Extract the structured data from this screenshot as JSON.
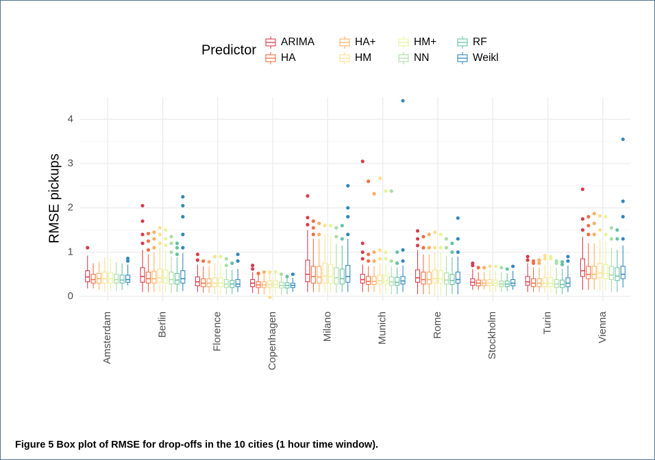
{
  "chart_data": {
    "type": "box",
    "caption": "Figure 5 Box plot of RMSE for drop-offs in the 10 cities (1 hour time window).",
    "ylabel": "RMSE pickups",
    "legend_title": "Predictor",
    "categories": [
      "Amsterdam",
      "Berlin",
      "Florence",
      "Copenhagen",
      "Milano",
      "Munich",
      "Rome",
      "Stockholm",
      "Turin",
      "Vienna"
    ],
    "ylim": [
      -0.1,
      4.5
    ],
    "yticks": [
      0,
      1,
      2,
      3,
      4
    ],
    "yminor": [
      0.5,
      1.5,
      2.5,
      3.5
    ],
    "grid": true,
    "series": [
      {
        "name": "ARIMA",
        "color": "#d53e4f",
        "values": [
          {
            "min": 0.18,
            "q1": 0.33,
            "median": 0.44,
            "q3": 0.58,
            "max": 0.92,
            "outliers": [
              1.1
            ]
          },
          {
            "min": 0.1,
            "q1": 0.32,
            "median": 0.45,
            "q3": 0.65,
            "max": 1.05,
            "outliers": [
              1.2,
              1.4,
              1.7,
              2.05
            ]
          },
          {
            "min": 0.1,
            "q1": 0.24,
            "median": 0.33,
            "q3": 0.44,
            "max": 0.72,
            "outliers": [
              0.82,
              0.95
            ]
          },
          {
            "min": 0.08,
            "q1": 0.22,
            "median": 0.3,
            "q3": 0.38,
            "max": 0.55,
            "outliers": [
              0.62,
              0.7
            ]
          },
          {
            "min": 0.1,
            "q1": 0.33,
            "median": 0.5,
            "q3": 0.82,
            "max": 1.5,
            "outliers": [
              1.62,
              1.78,
              2.27
            ]
          },
          {
            "min": 0.1,
            "q1": 0.3,
            "median": 0.38,
            "q3": 0.5,
            "max": 0.72,
            "outliers": [
              0.85,
              1.0,
              1.2,
              3.05
            ]
          },
          {
            "min": 0.05,
            "q1": 0.32,
            "median": 0.42,
            "q3": 0.6,
            "max": 1.05,
            "outliers": [
              1.15,
              1.3,
              1.48
            ]
          },
          {
            "min": 0.15,
            "q1": 0.25,
            "median": 0.32,
            "q3": 0.4,
            "max": 0.62,
            "outliers": [
              0.7,
              0.75
            ]
          },
          {
            "min": 0.1,
            "q1": 0.25,
            "median": 0.33,
            "q3": 0.45,
            "max": 0.75,
            "outliers": [
              0.82,
              0.9
            ]
          },
          {
            "min": 0.15,
            "q1": 0.45,
            "median": 0.58,
            "q3": 0.85,
            "max": 1.35,
            "outliers": [
              1.5,
              1.75,
              2.42
            ]
          }
        ]
      },
      {
        "name": "HA",
        "color": "#f46d43",
        "values": [
          {
            "min": 0.18,
            "q1": 0.3,
            "median": 0.38,
            "q3": 0.5,
            "max": 0.75,
            "outliers": []
          },
          {
            "min": 0.1,
            "q1": 0.3,
            "median": 0.4,
            "q3": 0.55,
            "max": 0.95,
            "outliers": [
              1.05,
              1.25,
              1.42
            ]
          },
          {
            "min": 0.08,
            "q1": 0.22,
            "median": 0.3,
            "q3": 0.4,
            "max": 0.68,
            "outliers": [
              0.8
            ]
          },
          {
            "min": 0.05,
            "q1": 0.2,
            "median": 0.26,
            "q3": 0.33,
            "max": 0.48,
            "outliers": [
              0.52
            ]
          },
          {
            "min": 0.1,
            "q1": 0.3,
            "median": 0.45,
            "q3": 0.68,
            "max": 1.3,
            "outliers": [
              1.4,
              1.55,
              1.7
            ]
          },
          {
            "min": 0.1,
            "q1": 0.27,
            "median": 0.34,
            "q3": 0.45,
            "max": 0.68,
            "outliers": [
              0.8,
              0.95,
              2.6
            ]
          },
          {
            "min": 0.05,
            "q1": 0.28,
            "median": 0.38,
            "q3": 0.55,
            "max": 0.95,
            "outliers": [
              1.1,
              1.35
            ]
          },
          {
            "min": 0.15,
            "q1": 0.24,
            "median": 0.3,
            "q3": 0.37,
            "max": 0.55,
            "outliers": [
              0.65
            ]
          },
          {
            "min": 0.1,
            "q1": 0.22,
            "median": 0.3,
            "q3": 0.4,
            "max": 0.65,
            "outliers": [
              0.75,
              0.8
            ]
          },
          {
            "min": 0.15,
            "q1": 0.4,
            "median": 0.5,
            "q3": 0.68,
            "max": 1.2,
            "outliers": [
              1.4,
              1.6,
              1.8
            ]
          }
        ]
      },
      {
        "name": "HA+",
        "color": "#fdae61",
        "values": [
          {
            "min": 0.15,
            "q1": 0.3,
            "median": 0.4,
            "q3": 0.52,
            "max": 0.78,
            "outliers": []
          },
          {
            "min": 0.1,
            "q1": 0.3,
            "median": 0.4,
            "q3": 0.57,
            "max": 1.0,
            "outliers": [
              1.1,
              1.3,
              1.45
            ]
          },
          {
            "min": 0.08,
            "q1": 0.22,
            "median": 0.3,
            "q3": 0.4,
            "max": 0.68,
            "outliers": [
              0.78
            ]
          },
          {
            "min": 0.05,
            "q1": 0.2,
            "median": 0.26,
            "q3": 0.33,
            "max": 0.5,
            "outliers": [
              0.55
            ]
          },
          {
            "min": 0.1,
            "q1": 0.3,
            "median": 0.44,
            "q3": 0.68,
            "max": 1.3,
            "outliers": [
              1.4,
              1.65
            ]
          },
          {
            "min": 0.1,
            "q1": 0.27,
            "median": 0.34,
            "q3": 0.45,
            "max": 0.68,
            "outliers": [
              0.8,
              1.0,
              2.32
            ]
          },
          {
            "min": 0.05,
            "q1": 0.28,
            "median": 0.38,
            "q3": 0.55,
            "max": 0.95,
            "outliers": [
              1.1,
              1.4
            ]
          },
          {
            "min": 0.15,
            "q1": 0.24,
            "median": 0.3,
            "q3": 0.37,
            "max": 0.55,
            "outliers": [
              0.65
            ]
          },
          {
            "min": 0.1,
            "q1": 0.22,
            "median": 0.3,
            "q3": 0.4,
            "max": 0.65,
            "outliers": [
              0.75,
              0.82
            ]
          },
          {
            "min": 0.15,
            "q1": 0.4,
            "median": 0.5,
            "q3": 0.68,
            "max": 1.2,
            "outliers": [
              1.4,
              1.65,
              1.87
            ]
          }
        ]
      },
      {
        "name": "HM",
        "color": "#fee08b",
        "values": [
          {
            "min": 0.1,
            "q1": 0.3,
            "median": 0.4,
            "q3": 0.55,
            "max": 0.88,
            "outliers": []
          },
          {
            "min": 0.1,
            "q1": 0.32,
            "median": 0.42,
            "q3": 0.62,
            "max": 1.1,
            "outliers": [
              1.2,
              1.4,
              1.55
            ]
          },
          {
            "min": 0.05,
            "q1": 0.22,
            "median": 0.3,
            "q3": 0.42,
            "max": 0.75,
            "outliers": [
              0.9
            ]
          },
          {
            "min": 0.05,
            "q1": 0.2,
            "median": 0.27,
            "q3": 0.35,
            "max": 0.52,
            "outliers": [
              -0.02,
              0.55
            ]
          },
          {
            "min": 0.1,
            "q1": 0.3,
            "median": 0.46,
            "q3": 0.75,
            "max": 1.4,
            "outliers": [
              1.6
            ]
          },
          {
            "min": 0.05,
            "q1": 0.28,
            "median": 0.36,
            "q3": 0.48,
            "max": 0.75,
            "outliers": [
              0.85,
              1.05,
              2.67
            ]
          },
          {
            "min": 0.02,
            "q1": 0.3,
            "median": 0.4,
            "q3": 0.6,
            "max": 1.0,
            "outliers": [
              1.1,
              1.45
            ]
          },
          {
            "min": 0.1,
            "q1": 0.24,
            "median": 0.3,
            "q3": 0.38,
            "max": 0.6,
            "outliers": [
              0.68
            ]
          },
          {
            "min": 0.08,
            "q1": 0.22,
            "median": 0.3,
            "q3": 0.42,
            "max": 0.72,
            "outliers": [
              0.85,
              0.92
            ]
          },
          {
            "min": 0.12,
            "q1": 0.42,
            "median": 0.53,
            "q3": 0.75,
            "max": 1.3,
            "outliers": [
              1.5,
              1.82
            ]
          }
        ]
      },
      {
        "name": "HM+",
        "color": "#e6f598",
        "values": [
          {
            "min": 0.12,
            "q1": 0.3,
            "median": 0.4,
            "q3": 0.54,
            "max": 0.85,
            "outliers": []
          },
          {
            "min": 0.1,
            "q1": 0.3,
            "median": 0.42,
            "q3": 0.6,
            "max": 1.05,
            "outliers": [
              1.15,
              1.3,
              1.5
            ]
          },
          {
            "min": 0.05,
            "q1": 0.22,
            "median": 0.3,
            "q3": 0.42,
            "max": 0.72,
            "outliers": [
              0.9
            ]
          },
          {
            "min": 0.02,
            "q1": 0.2,
            "median": 0.27,
            "q3": 0.35,
            "max": 0.5,
            "outliers": [
              0.55
            ]
          },
          {
            "min": 0.1,
            "q1": 0.3,
            "median": 0.45,
            "q3": 0.72,
            "max": 1.35,
            "outliers": [
              1.6
            ]
          },
          {
            "min": 0.05,
            "q1": 0.28,
            "median": 0.35,
            "q3": 0.47,
            "max": 0.72,
            "outliers": [
              0.85,
              1.0,
              2.38
            ]
          },
          {
            "min": 0.02,
            "q1": 0.3,
            "median": 0.4,
            "q3": 0.58,
            "max": 1.0,
            "outliers": [
              1.1,
              1.4
            ]
          },
          {
            "min": 0.1,
            "q1": 0.24,
            "median": 0.3,
            "q3": 0.37,
            "max": 0.58,
            "outliers": [
              0.68
            ]
          },
          {
            "min": 0.08,
            "q1": 0.22,
            "median": 0.3,
            "q3": 0.42,
            "max": 0.7,
            "outliers": [
              0.85,
              0.9
            ]
          },
          {
            "min": 0.12,
            "q1": 0.4,
            "median": 0.52,
            "q3": 0.72,
            "max": 1.25,
            "outliers": [
              1.4,
              1.8
            ]
          }
        ]
      },
      {
        "name": "NN",
        "color": "#abdda4",
        "values": [
          {
            "min": 0.12,
            "q1": 0.3,
            "median": 0.38,
            "q3": 0.5,
            "max": 0.78,
            "outliers": []
          },
          {
            "min": 0.08,
            "q1": 0.28,
            "median": 0.38,
            "q3": 0.55,
            "max": 0.9,
            "outliers": [
              1.0,
              1.2,
              1.35
            ]
          },
          {
            "min": 0.05,
            "q1": 0.2,
            "median": 0.28,
            "q3": 0.38,
            "max": 0.62,
            "outliers": [
              0.7,
              0.85
            ]
          },
          {
            "min": 0.03,
            "q1": 0.19,
            "median": 0.25,
            "q3": 0.32,
            "max": 0.45,
            "outliers": [
              0.5
            ]
          },
          {
            "min": 0.08,
            "q1": 0.28,
            "median": 0.42,
            "q3": 0.65,
            "max": 1.2,
            "outliers": [
              1.35,
              1.55
            ]
          },
          {
            "min": 0.05,
            "q1": 0.25,
            "median": 0.33,
            "q3": 0.44,
            "max": 0.68,
            "outliers": [
              0.8,
              2.38
            ]
          },
          {
            "min": 0.02,
            "q1": 0.28,
            "median": 0.37,
            "q3": 0.53,
            "max": 0.92,
            "outliers": [
              1.1,
              1.3
            ]
          },
          {
            "min": 0.1,
            "q1": 0.22,
            "median": 0.28,
            "q3": 0.35,
            "max": 0.55,
            "outliers": [
              0.65
            ]
          },
          {
            "min": 0.05,
            "q1": 0.2,
            "median": 0.28,
            "q3": 0.38,
            "max": 0.65,
            "outliers": [
              0.75,
              0.8
            ]
          },
          {
            "min": 0.1,
            "q1": 0.38,
            "median": 0.48,
            "q3": 0.68,
            "max": 1.1,
            "outliers": [
              1.3,
              1.55
            ]
          }
        ]
      },
      {
        "name": "RF",
        "color": "#66c2a5",
        "values": [
          {
            "min": 0.15,
            "q1": 0.3,
            "median": 0.37,
            "q3": 0.48,
            "max": 0.75,
            "outliers": []
          },
          {
            "min": 0.1,
            "q1": 0.28,
            "median": 0.37,
            "q3": 0.52,
            "max": 0.88,
            "outliers": [
              0.95,
              1.1,
              1.2
            ]
          },
          {
            "min": 0.05,
            "q1": 0.2,
            "median": 0.28,
            "q3": 0.36,
            "max": 0.6,
            "outliers": [
              0.75
            ]
          },
          {
            "min": 0.05,
            "q1": 0.19,
            "median": 0.25,
            "q3": 0.31,
            "max": 0.42,
            "outliers": [
              0.45
            ]
          },
          {
            "min": 0.1,
            "q1": 0.28,
            "median": 0.4,
            "q3": 0.62,
            "max": 1.15,
            "outliers": [
              1.3,
              1.6
            ]
          },
          {
            "min": 0.05,
            "q1": 0.25,
            "median": 0.32,
            "q3": 0.43,
            "max": 0.65,
            "outliers": [
              0.75,
              1.0
            ]
          },
          {
            "min": 0.05,
            "q1": 0.27,
            "median": 0.36,
            "q3": 0.5,
            "max": 0.88,
            "outliers": [
              1.0,
              1.2
            ]
          },
          {
            "min": 0.12,
            "q1": 0.22,
            "median": 0.28,
            "q3": 0.35,
            "max": 0.52,
            "outliers": [
              0.62
            ]
          },
          {
            "min": 0.05,
            "q1": 0.2,
            "median": 0.27,
            "q3": 0.37,
            "max": 0.62,
            "outliers": [
              0.72,
              0.78
            ]
          },
          {
            "min": 0.1,
            "q1": 0.36,
            "median": 0.46,
            "q3": 0.65,
            "max": 1.05,
            "outliers": [
              1.3,
              1.5
            ]
          }
        ]
      },
      {
        "name": "Weikl",
        "color": "#3288bd",
        "values": [
          {
            "min": 0.25,
            "q1": 0.32,
            "median": 0.38,
            "q3": 0.48,
            "max": 0.72,
            "outliers": [
              0.8,
              0.86
            ]
          },
          {
            "min": 0.12,
            "q1": 0.3,
            "median": 0.4,
            "q3": 0.58,
            "max": 0.98,
            "outliers": [
              1.1,
              1.4,
              1.8,
              2.05,
              2.25
            ]
          },
          {
            "min": 0.1,
            "q1": 0.22,
            "median": 0.28,
            "q3": 0.38,
            "max": 0.62,
            "outliers": [
              0.8,
              0.95
            ]
          },
          {
            "min": 0.1,
            "q1": 0.2,
            "median": 0.25,
            "q3": 0.3,
            "max": 0.42,
            "outliers": [
              0.5
            ]
          },
          {
            "min": 0.1,
            "q1": 0.32,
            "median": 0.45,
            "q3": 0.7,
            "max": 1.3,
            "outliers": [
              1.4,
              1.8,
              2.0,
              2.5
            ]
          },
          {
            "min": 0.1,
            "q1": 0.28,
            "median": 0.35,
            "q3": 0.45,
            "max": 0.7,
            "outliers": [
              0.8,
              1.05,
              4.42
            ]
          },
          {
            "min": 0.05,
            "q1": 0.3,
            "median": 0.38,
            "q3": 0.55,
            "max": 0.9,
            "outliers": [
              1.0,
              1.3,
              1.77
            ]
          },
          {
            "min": 0.15,
            "q1": 0.24,
            "median": 0.3,
            "q3": 0.38,
            "max": 0.58,
            "outliers": [
              0.68
            ]
          },
          {
            "min": 0.1,
            "q1": 0.22,
            "median": 0.3,
            "q3": 0.42,
            "max": 0.7,
            "outliers": [
              0.8,
              0.9
            ]
          },
          {
            "min": 0.2,
            "q1": 0.4,
            "median": 0.5,
            "q3": 0.68,
            "max": 1.15,
            "outliers": [
              1.3,
              1.8,
              2.15,
              3.55
            ]
          }
        ]
      }
    ]
  }
}
